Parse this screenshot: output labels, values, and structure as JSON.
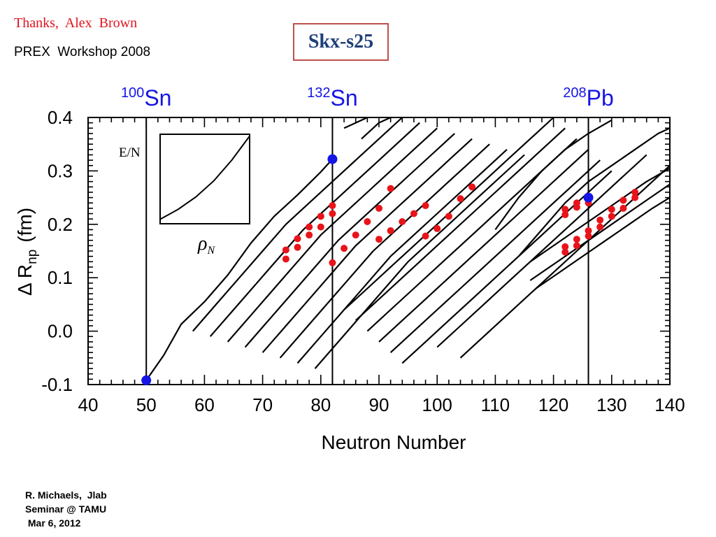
{
  "header": {
    "thanks": "Thanks,  Alex  Brown",
    "workshop": "PREX  Workshop 2008",
    "title": "Skx-s25"
  },
  "footer": {
    "line1": "R. Michaels,  Jlab",
    "line2": "Seminar @ TAMU",
    "line3": " Mar 6, 2012"
  },
  "chart_data": {
    "type": "line",
    "xlabel": "Neutron Number",
    "ylabel_main": "Δ R",
    "ylabel_sub": "np",
    "ylabel_unit": "(fm)",
    "xlim": [
      40,
      140
    ],
    "ylim": [
      -0.1,
      0.4
    ],
    "xticks": [
      40,
      50,
      60,
      70,
      80,
      90,
      100,
      110,
      120,
      130,
      140
    ],
    "yticks": [
      -0.1,
      0.0,
      0.1,
      0.2,
      0.3,
      0.4
    ],
    "xtick_labels": [
      "40",
      "50",
      "60",
      "70",
      "80",
      "90",
      "100",
      "110",
      "120",
      "130",
      "140"
    ],
    "ytick_labels": [
      "-0.1",
      "0.0",
      "0.1",
      "0.2",
      "0.3",
      "0.4"
    ],
    "colors": {
      "curves": "#000000",
      "red_points": "#e8141a",
      "blue_points": "#1515e6",
      "isotope_labels": "#1515e6"
    },
    "vertical_lines": [
      {
        "x": 50,
        "mass": "100",
        "element": "Sn"
      },
      {
        "x": 82,
        "mass": "132",
        "element": "Sn"
      },
      {
        "x": 126,
        "mass": "208",
        "element": "Pb"
      }
    ],
    "inset": {
      "ylabel": "E/N",
      "xlabel_symbol": "ρ",
      "xlabel_sub": "N",
      "curve": [
        [
          0.0,
          0.05
        ],
        [
          0.2,
          0.16
        ],
        [
          0.4,
          0.3
        ],
        [
          0.6,
          0.48
        ],
        [
          0.8,
          0.71
        ],
        [
          1.0,
          0.98
        ]
      ]
    },
    "series": [
      {
        "points": [
          [
            50,
            -0.092
          ],
          [
            53,
            -0.045
          ],
          [
            56,
            0.013
          ],
          [
            60,
            0.055
          ],
          [
            64,
            0.105
          ],
          [
            68,
            0.165
          ],
          [
            72,
            0.215
          ],
          [
            76,
            0.255
          ],
          [
            80,
            0.298
          ],
          [
            82,
            0.322
          ]
        ]
      },
      {
        "points": [
          [
            58,
            0.0
          ],
          [
            62,
            0.05
          ],
          [
            66,
            0.1
          ],
          [
            70,
            0.15
          ],
          [
            74,
            0.2
          ],
          [
            78,
            0.24
          ],
          [
            82,
            0.28
          ],
          [
            86,
            0.32
          ],
          [
            90,
            0.36
          ],
          [
            94,
            0.4
          ]
        ]
      },
      {
        "points": [
          [
            61,
            -0.01
          ],
          [
            65,
            0.04
          ],
          [
            69,
            0.09
          ],
          [
            73,
            0.14
          ],
          [
            77,
            0.19
          ],
          [
            81,
            0.23
          ],
          [
            85,
            0.27
          ],
          [
            89,
            0.31
          ],
          [
            93,
            0.35
          ],
          [
            97,
            0.39
          ]
        ]
      },
      {
        "points": [
          [
            64,
            -0.02
          ],
          [
            68,
            0.03
          ],
          [
            72,
            0.08
          ],
          [
            76,
            0.13
          ],
          [
            80,
            0.18
          ],
          [
            84,
            0.22
          ],
          [
            88,
            0.26
          ],
          [
            92,
            0.3
          ],
          [
            96,
            0.34
          ],
          [
            100,
            0.38
          ]
        ]
      },
      {
        "points": [
          [
            67,
            -0.03
          ],
          [
            71,
            0.02
          ],
          [
            75,
            0.07
          ],
          [
            79,
            0.12
          ],
          [
            83,
            0.17
          ],
          [
            87,
            0.21
          ],
          [
            91,
            0.25
          ],
          [
            95,
            0.29
          ],
          [
            99,
            0.33
          ],
          [
            103,
            0.37
          ]
        ]
      },
      {
        "points": [
          [
            70,
            -0.04
          ],
          [
            74,
            0.01
          ],
          [
            78,
            0.06
          ],
          [
            82,
            0.11
          ],
          [
            86,
            0.16
          ],
          [
            90,
            0.2
          ],
          [
            94,
            0.24
          ],
          [
            98,
            0.28
          ],
          [
            102,
            0.32
          ],
          [
            106,
            0.36
          ]
        ]
      },
      {
        "points": [
          [
            73,
            -0.05
          ],
          [
            77,
            0.0
          ],
          [
            81,
            0.05
          ],
          [
            85,
            0.1
          ],
          [
            89,
            0.15
          ],
          [
            93,
            0.19
          ],
          [
            97,
            0.23
          ],
          [
            101,
            0.27
          ],
          [
            105,
            0.31
          ],
          [
            109,
            0.35
          ]
        ]
      },
      {
        "points": [
          [
            76,
            -0.06
          ],
          [
            80,
            -0.01
          ],
          [
            84,
            0.04
          ],
          [
            88,
            0.09
          ],
          [
            92,
            0.14
          ],
          [
            96,
            0.18
          ],
          [
            100,
            0.22
          ],
          [
            104,
            0.26
          ],
          [
            108,
            0.3
          ],
          [
            112,
            0.34
          ]
        ]
      },
      {
        "points": [
          [
            79,
            -0.07
          ],
          [
            83,
            -0.02
          ],
          [
            87,
            0.03
          ],
          [
            91,
            0.08
          ],
          [
            95,
            0.13
          ],
          [
            99,
            0.17
          ],
          [
            103,
            0.21
          ],
          [
            107,
            0.25
          ],
          [
            111,
            0.29
          ],
          [
            115,
            0.33
          ]
        ]
      },
      {
        "points": [
          [
            84,
            0.04
          ],
          [
            88,
            0.08
          ],
          [
            92,
            0.12
          ],
          [
            96,
            0.16
          ],
          [
            100,
            0.2
          ],
          [
            104,
            0.24
          ],
          [
            108,
            0.28
          ],
          [
            112,
            0.32
          ],
          [
            116,
            0.36
          ],
          [
            120,
            0.4
          ]
        ]
      },
      {
        "points": [
          [
            86,
            0.02
          ],
          [
            90,
            0.06
          ],
          [
            94,
            0.1
          ],
          [
            98,
            0.14
          ],
          [
            102,
            0.18
          ],
          [
            106,
            0.22
          ],
          [
            110,
            0.26
          ],
          [
            114,
            0.3
          ],
          [
            118,
            0.34
          ],
          [
            122,
            0.38
          ]
        ]
      },
      {
        "points": [
          [
            88,
            0.0
          ],
          [
            92,
            0.04
          ],
          [
            96,
            0.08
          ],
          [
            100,
            0.12
          ],
          [
            104,
            0.16
          ],
          [
            108,
            0.2
          ],
          [
            112,
            0.24
          ],
          [
            116,
            0.28
          ],
          [
            120,
            0.32
          ],
          [
            124,
            0.36
          ]
        ]
      },
      {
        "points": [
          [
            90,
            -0.02
          ],
          [
            94,
            0.02
          ],
          [
            98,
            0.06
          ],
          [
            102,
            0.1
          ],
          [
            106,
            0.14
          ],
          [
            110,
            0.18
          ],
          [
            114,
            0.22
          ],
          [
            118,
            0.26
          ],
          [
            122,
            0.3
          ],
          [
            126,
            0.34
          ]
        ]
      },
      {
        "points": [
          [
            92,
            -0.04
          ],
          [
            96,
            0.0
          ],
          [
            100,
            0.04
          ],
          [
            104,
            0.08
          ],
          [
            108,
            0.12
          ],
          [
            112,
            0.16
          ],
          [
            116,
            0.2
          ],
          [
            120,
            0.24
          ],
          [
            124,
            0.28
          ],
          [
            128,
            0.32
          ]
        ]
      },
      {
        "points": [
          [
            94,
            -0.06
          ],
          [
            98,
            -0.02
          ],
          [
            102,
            0.02
          ],
          [
            106,
            0.06
          ],
          [
            110,
            0.1
          ],
          [
            114,
            0.14
          ],
          [
            118,
            0.18
          ],
          [
            122,
            0.22
          ],
          [
            126,
            0.26
          ],
          [
            130,
            0.3
          ]
        ]
      },
      {
        "points": [
          [
            100,
            -0.03
          ],
          [
            104,
            0.01
          ],
          [
            108,
            0.05
          ],
          [
            112,
            0.09
          ],
          [
            116,
            0.13
          ],
          [
            120,
            0.17
          ],
          [
            124,
            0.21
          ],
          [
            128,
            0.25
          ],
          [
            132,
            0.29
          ],
          [
            136,
            0.33
          ]
        ]
      },
      {
        "points": [
          [
            104,
            -0.05
          ],
          [
            108,
            -0.01
          ],
          [
            112,
            0.03
          ],
          [
            116,
            0.07
          ],
          [
            120,
            0.11
          ],
          [
            124,
            0.15
          ],
          [
            128,
            0.19
          ],
          [
            132,
            0.23
          ],
          [
            136,
            0.27
          ],
          [
            140,
            0.31
          ]
        ]
      },
      {
        "points": [
          [
            84,
            0.38
          ],
          [
            88,
            0.4
          ]
        ]
      },
      {
        "points": [
          [
            87,
            0.36
          ],
          [
            90,
            0.39
          ],
          [
            92,
            0.4
          ]
        ]
      },
      {
        "points": [
          [
            110,
            0.19
          ],
          [
            114,
            0.25
          ],
          [
            118,
            0.3
          ],
          [
            122,
            0.34
          ],
          [
            126,
            0.37
          ],
          [
            130,
            0.395
          ]
        ]
      },
      {
        "points": [
          [
            114,
            0.14
          ],
          [
            118,
            0.19
          ],
          [
            122,
            0.24
          ],
          [
            126,
            0.28
          ],
          [
            130,
            0.31
          ],
          [
            134,
            0.34
          ],
          [
            138,
            0.37
          ],
          [
            140,
            0.38
          ]
        ]
      },
      {
        "points": [
          [
            116,
            0.13
          ],
          [
            120,
            0.16
          ],
          [
            124,
            0.19
          ],
          [
            128,
            0.22
          ],
          [
            132,
            0.25
          ],
          [
            136,
            0.28
          ],
          [
            140,
            0.305
          ]
        ]
      },
      {
        "points": [
          [
            116,
            0.095
          ],
          [
            120,
            0.125
          ],
          [
            124,
            0.155
          ],
          [
            128,
            0.185
          ],
          [
            132,
            0.215
          ],
          [
            136,
            0.245
          ],
          [
            140,
            0.275
          ]
        ]
      },
      {
        "points": [
          [
            117,
            0.08
          ],
          [
            121,
            0.11
          ],
          [
            125,
            0.14
          ],
          [
            129,
            0.17
          ],
          [
            133,
            0.2
          ],
          [
            137,
            0.23
          ],
          [
            140,
            0.25
          ]
        ]
      }
    ],
    "red_points": [
      [
        74,
        0.152
      ],
      [
        74,
        0.135
      ],
      [
        76,
        0.173
      ],
      [
        76,
        0.157
      ],
      [
        78,
        0.195
      ],
      [
        78,
        0.18
      ],
      [
        80,
        0.215
      ],
      [
        80,
        0.195
      ],
      [
        82,
        0.235
      ],
      [
        82,
        0.22
      ],
      [
        82,
        0.128
      ],
      [
        84,
        0.155
      ],
      [
        86,
        0.18
      ],
      [
        88,
        0.205
      ],
      [
        90,
        0.23
      ],
      [
        90,
        0.172
      ],
      [
        92,
        0.267
      ],
      [
        92,
        0.188
      ],
      [
        94,
        0.205
      ],
      [
        96,
        0.22
      ],
      [
        98,
        0.235
      ],
      [
        98,
        0.178
      ],
      [
        100,
        0.192
      ],
      [
        102,
        0.215
      ],
      [
        104,
        0.248
      ],
      [
        106,
        0.27
      ],
      [
        122,
        0.228
      ],
      [
        122,
        0.218
      ],
      [
        122,
        0.158
      ],
      [
        122,
        0.148
      ],
      [
        124,
        0.24
      ],
      [
        124,
        0.232
      ],
      [
        124,
        0.172
      ],
      [
        124,
        0.16
      ],
      [
        126,
        0.24
      ],
      [
        126,
        0.188
      ],
      [
        126,
        0.178
      ],
      [
        128,
        0.208
      ],
      [
        128,
        0.195
      ],
      [
        130,
        0.228
      ],
      [
        130,
        0.215
      ],
      [
        132,
        0.245
      ],
      [
        132,
        0.23
      ],
      [
        134,
        0.26
      ],
      [
        134,
        0.25
      ]
    ],
    "blue_points": [
      [
        50,
        -0.092
      ],
      [
        82,
        0.322
      ],
      [
        126,
        0.25
      ]
    ]
  }
}
